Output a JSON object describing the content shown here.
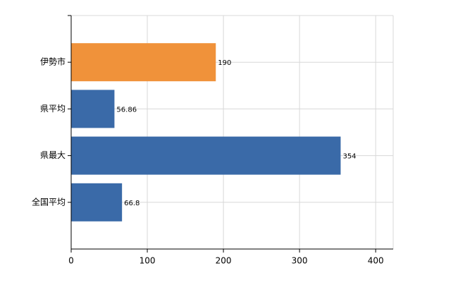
{
  "chart_data": {
    "type": "bar",
    "orientation": "horizontal",
    "categories": [
      "伊勢市",
      "県平均",
      "県最大",
      "全国平均"
    ],
    "values": [
      190,
      56.86,
      354,
      66.8
    ],
    "colors": [
      "#f0923a",
      "#3a6aa8",
      "#3a6aa8",
      "#3a6aa8"
    ],
    "xlim": [
      0,
      423
    ],
    "xticks": [
      0,
      100,
      200,
      300,
      400
    ],
    "grid": true
  }
}
